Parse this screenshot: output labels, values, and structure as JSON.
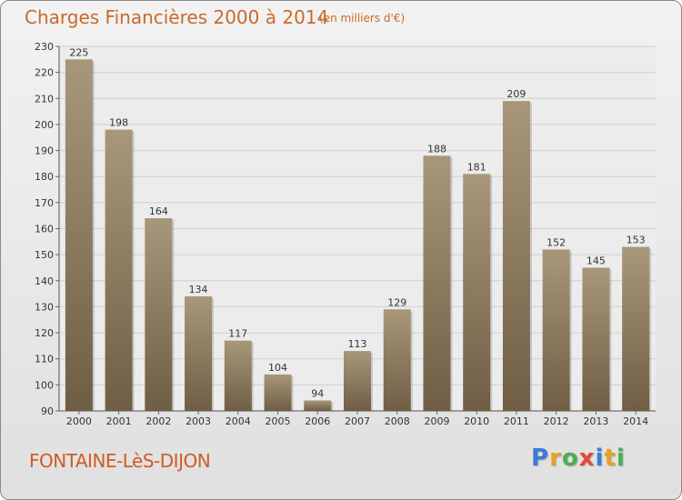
{
  "header": {
    "title": "Charges Financières 2000 à 2014",
    "unit": "(en milliers d'€)"
  },
  "footer": {
    "location": "FONTAINE-LèS-DIJON"
  },
  "logo": {
    "text": "Proxiti",
    "letters": [
      "P",
      "r",
      "o",
      "x",
      "i",
      "t",
      "i"
    ],
    "colors": [
      "#3a7bd5",
      "#e8a02a",
      "#4caf50",
      "#e04a3a",
      "#3a7bd5",
      "#e8a02a",
      "#4caf50"
    ]
  },
  "colors": {
    "bar_top": "#a8977a",
    "bar_bottom": "#6f5e44",
    "text": "#c96a2a",
    "grid": "#d0d0d0"
  },
  "chart_data": {
    "type": "bar",
    "title": "Charges Financières 2000 à 2014",
    "subtitle": "(en milliers d'€)",
    "xlabel": "",
    "ylabel": "",
    "categories": [
      "2000",
      "2001",
      "2002",
      "2003",
      "2004",
      "2005",
      "2006",
      "2007",
      "2008",
      "2009",
      "2010",
      "2011",
      "2012",
      "2013",
      "2014"
    ],
    "values": [
      225,
      198,
      164,
      134,
      117,
      104,
      94,
      113,
      129,
      188,
      181,
      209,
      152,
      145,
      153
    ],
    "ylim": [
      90,
      230
    ],
    "yticks": [
      90,
      100,
      110,
      120,
      130,
      140,
      150,
      160,
      170,
      180,
      190,
      200,
      210,
      220,
      230
    ],
    "grid": true,
    "legend": "none"
  }
}
